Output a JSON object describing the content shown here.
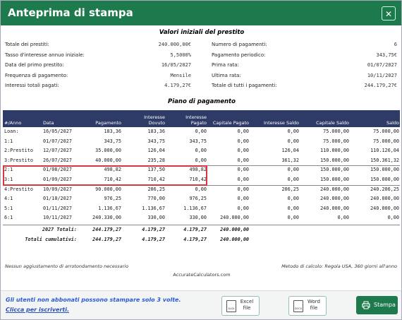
{
  "header": {
    "title": "Anteprima di stampa"
  },
  "summary": {
    "title": "Valori iniziali del prestito",
    "left": [
      {
        "label": "Totale dei prestiti:",
        "value": "240.000,00€"
      },
      {
        "label": "Tasso d'interesse annuo iniziale:",
        "value": "5,5000%"
      },
      {
        "label": "Data del primo prestito:",
        "value": "16/05/2027"
      },
      {
        "label": "Frequenza di pagamento:",
        "value": "Mensile"
      },
      {
        "label": "Interessi totali pagati:",
        "value": "4.179,27€"
      }
    ],
    "right": [
      {
        "label": "Numero di pagamenti:",
        "value": "6"
      },
      {
        "label": "Pagamento periodico:",
        "value": "343,75€"
      },
      {
        "label": "Prima rata:",
        "value": "01/07/2027"
      },
      {
        "label": "Ultima rata:",
        "value": "10/11/2027"
      },
      {
        "label": "Totale di tutti i pagamenti:",
        "value": "244.179,27€"
      }
    ]
  },
  "schedule": {
    "title": "Piano di pagamento",
    "columns": [
      "#/Anno",
      "Data",
      "Pagamento",
      "Interesse Dovuto",
      "Interesse Pagato",
      "Capitale Pagato",
      "Interesse Saldo",
      "Capitale Saldo",
      "Saldo"
    ],
    "rows": [
      [
        "Loan:",
        "16/05/2027",
        "183,36",
        "183,36",
        "0,00",
        "0,00",
        "0,00",
        "75.000,00",
        "75.000,00"
      ],
      [
        "1:1",
        "01/07/2027",
        "343,75",
        "343,75",
        "343,75",
        "0,00",
        "0,00",
        "75.000,00",
        "75.000,00"
      ],
      [
        "2:Prestito",
        "12/07/2027",
        "35.000,00",
        "126,04",
        "0,00",
        "0,00",
        "126,04",
        "110.000,00",
        "110.126,04"
      ],
      [
        "3:Prestito",
        "26/07/2027",
        "40.000,00",
        "235,28",
        "0,00",
        "0,00",
        "361,32",
        "150.000,00",
        "150.361,32"
      ],
      [
        "2:1",
        "01/08/2027",
        "498,82",
        "137,50",
        "498,82",
        "0,00",
        "0,00",
        "150.000,00",
        "150.000,00"
      ],
      [
        "3:1",
        "01/09/2027",
        "710,42",
        "710,42",
        "710,42",
        "0,00",
        "0,00",
        "150.000,00",
        "150.000,00"
      ],
      [
        "4:Prestito",
        "10/09/2027",
        "90.000,00",
        "206,25",
        "0,00",
        "0,00",
        "206,25",
        "240.000,00",
        "240.206,25"
      ],
      [
        "4:1",
        "01/10/2027",
        "976,25",
        "770,00",
        "976,25",
        "0,00",
        "0,00",
        "240.000,00",
        "240.000,00"
      ],
      [
        "5:1",
        "01/11/2027",
        "1.136,67",
        "1.136,67",
        "1.136,67",
        "0,00",
        "0,00",
        "240.000,00",
        "240.000,00"
      ],
      [
        "6:1",
        "10/11/2027",
        "240.330,00",
        "330,00",
        "330,00",
        "240.000,00",
        "0,00",
        "0,00",
        "0,00"
      ]
    ],
    "totals": [
      [
        "2027 Totali:",
        "244.179,27",
        "4.179,27",
        "4.179,27",
        "240.000,00"
      ],
      [
        "Totali cumulativi:",
        "244.179,27",
        "4.179,27",
        "4.179,27",
        "240.000,00"
      ]
    ]
  },
  "notes": {
    "rounding": "Nessun aggiustamento di arrotondamento necessario",
    "method": "Metodo di calcolo: Regola USA, 360 giorni all'anno",
    "site": "AccurateCalculators.com"
  },
  "footer": {
    "message": "Gli utenti non abbonati possono stampare solo 3 volte.",
    "link": "Clicca per iscriverti.",
    "excel": {
      "icon": "XLSX",
      "label": "Excel file"
    },
    "word": {
      "icon": "DOCX",
      "label": "Word file"
    },
    "print": "Stampa"
  }
}
